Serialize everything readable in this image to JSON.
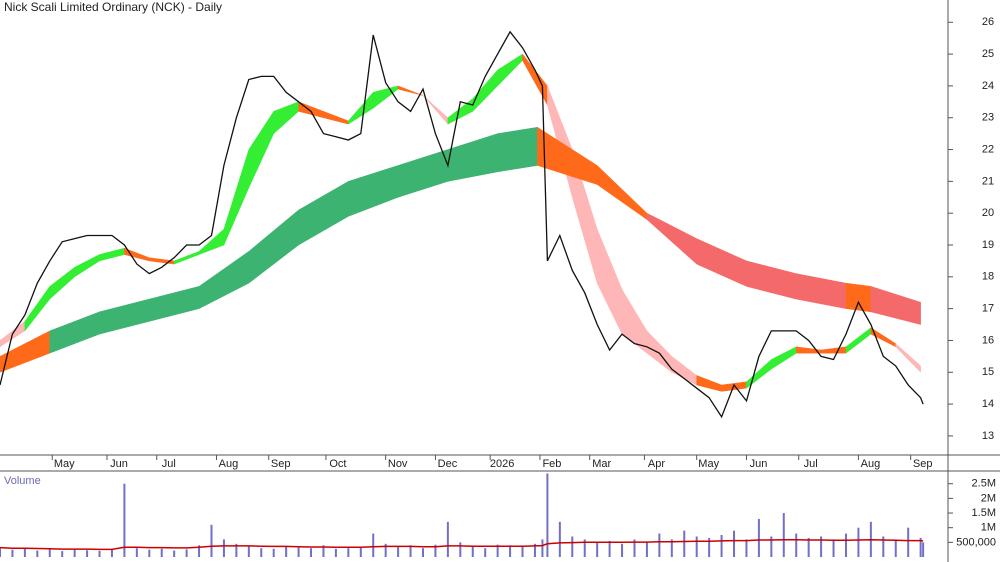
{
  "chart_data": [
    {
      "type": "line",
      "title": "Nick Scali Limited Ordinary (NCK) - Daily",
      "xlim": [
        0,
        381
      ],
      "ylim": [
        12.4,
        26.7
      ],
      "xticks": [
        {
          "value": 21,
          "label": "May"
        },
        {
          "value": 43,
          "label": "Jun"
        },
        {
          "value": 63,
          "label": "Jul"
        },
        {
          "value": 87,
          "label": "Aug"
        },
        {
          "value": 108,
          "label": "Sep"
        },
        {
          "value": 131,
          "label": "Oct"
        },
        {
          "value": 155,
          "label": "Nov"
        },
        {
          "value": 175,
          "label": "Dec"
        },
        {
          "value": 197,
          "label": "2026"
        },
        {
          "value": 217,
          "label": "Feb"
        },
        {
          "value": 237,
          "label": "Mar"
        },
        {
          "value": 259,
          "label": "Apr"
        },
        {
          "value": 280,
          "label": "May"
        },
        {
          "value": 300,
          "label": "Jun"
        },
        {
          "value": 321,
          "label": "Jul"
        },
        {
          "value": 345,
          "label": "Aug"
        },
        {
          "value": 366,
          "label": "Sep"
        }
      ],
      "yticks": [
        13,
        14,
        15,
        16,
        17,
        18,
        19,
        20,
        21,
        22,
        23,
        24,
        25,
        26
      ],
      "x": [
        0,
        5,
        10,
        15,
        20,
        25,
        30,
        35,
        40,
        45,
        50,
        55,
        60,
        65,
        70,
        75,
        80,
        85,
        90,
        95,
        100,
        105,
        110,
        115,
        120,
        125,
        130,
        135,
        140,
        145,
        150,
        155,
        160,
        165,
        170,
        175,
        180,
        185,
        190,
        195,
        200,
        205,
        210,
        215,
        218,
        220,
        225,
        230,
        235,
        240,
        245,
        250,
        255,
        260,
        265,
        270,
        275,
        280,
        285,
        290,
        295,
        300,
        305,
        310,
        315,
        320,
        325,
        330,
        335,
        340,
        345,
        350,
        355,
        360,
        365,
        370,
        371
      ],
      "series": [
        {
          "color": "#111111",
          "values": [
            14.6,
            16.2,
            16.8,
            17.8,
            18.5,
            19.1,
            19.2,
            19.3,
            19.3,
            19.3,
            19.0,
            18.4,
            18.1,
            18.3,
            18.6,
            19.0,
            19.0,
            19.3,
            21.5,
            23.0,
            24.2,
            24.3,
            24.3,
            23.8,
            23.5,
            23.2,
            22.5,
            22.4,
            22.3,
            22.5,
            25.6,
            24.1,
            23.5,
            23.2,
            23.9,
            22.5,
            21.5,
            23.5,
            23.4,
            24.3,
            25.0,
            25.7,
            25.2,
            24.5,
            24.0,
            18.5,
            19.3,
            18.2,
            17.5,
            16.5,
            15.7,
            16.2,
            15.9,
            15.8,
            15.6,
            15.1,
            14.8,
            14.5,
            14.2,
            13.6,
            14.6,
            14.1,
            15.5,
            16.3,
            16.3,
            16.3,
            16.0,
            15.5,
            15.4,
            16.2,
            17.2,
            16.5,
            15.5,
            15.2,
            14.6,
            14.2,
            14.0
          ]
        }
      ],
      "bands": [
        {
          "x": [
            0,
            10,
            20,
            30,
            40,
            50,
            60,
            70,
            80,
            90,
            100,
            110,
            120,
            130,
            140,
            150,
            160,
            170,
            180,
            190,
            200,
            210,
            220,
            230,
            240,
            250,
            260,
            270,
            280,
            290,
            300,
            310,
            320,
            330,
            340,
            350,
            360,
            370
          ],
          "upper": [
            16.0,
            16.6,
            17.7,
            18.3,
            18.7,
            18.9,
            18.6,
            18.5,
            18.8,
            19.5,
            22.0,
            23.2,
            23.5,
            23.2,
            22.9,
            23.8,
            24.0,
            23.7,
            23.0,
            23.6,
            24.5,
            25.0,
            24.0,
            22.0,
            19.5,
            17.6,
            16.3,
            15.5,
            14.9,
            14.6,
            14.7,
            15.4,
            15.8,
            15.7,
            15.8,
            16.4,
            15.9,
            15.2
          ],
          "lower": [
            15.8,
            16.3,
            17.3,
            18.0,
            18.5,
            18.7,
            18.5,
            18.4,
            18.7,
            19.0,
            20.8,
            22.5,
            23.2,
            23.0,
            22.8,
            23.3,
            23.9,
            23.7,
            22.8,
            23.2,
            24.0,
            24.8,
            23.4,
            20.5,
            17.8,
            16.2,
            15.6,
            15.0,
            14.6,
            14.4,
            14.5,
            15.1,
            15.6,
            15.6,
            15.6,
            16.2,
            15.8,
            15.0
          ],
          "colors": [
            "#ffb6b6",
            "#33ee33",
            "#33ee33",
            "#33ee33",
            "#33ee33",
            "#ff6a1a",
            "#ff6a1a",
            "#33ee33",
            "#33ee33",
            "#33ee33",
            "#33ee33",
            "#33ee33",
            "#ff6a1a",
            "#ff6a1a",
            "#33ee33",
            "#33ee33",
            "#ff6a1a",
            "#ffb6b6",
            "#33ee33",
            "#33ee33",
            "#33ee33",
            "#ff6a1a",
            "#ffb6b6",
            "#ffb6b6",
            "#ffb6b6",
            "#ffb6b6",
            "#ffb6b6",
            "#ffb6b6",
            "#ff6a1a",
            "#ff6a1a",
            "#33ee33",
            "#33ee33",
            "#ff6a1a",
            "#ff6a1a",
            "#33ee33",
            "#ff6a1a",
            "#ffb6b6"
          ]
        },
        {
          "x": [
            0,
            20,
            40,
            60,
            80,
            100,
            120,
            140,
            160,
            180,
            200,
            216,
            240,
            260,
            280,
            300,
            320,
            340,
            350,
            370
          ],
          "upper": [
            15.5,
            16.3,
            16.9,
            17.3,
            17.7,
            18.8,
            20.1,
            21.0,
            21.5,
            22.0,
            22.5,
            22.7,
            21.5,
            20.0,
            19.2,
            18.5,
            18.1,
            17.8,
            17.7,
            17.2
          ],
          "lower": [
            15.0,
            15.6,
            16.2,
            16.6,
            17.0,
            17.8,
            19.0,
            19.9,
            20.5,
            21.0,
            21.3,
            21.5,
            20.9,
            19.8,
            18.4,
            17.7,
            17.3,
            17.0,
            16.9,
            16.5
          ],
          "colors": [
            "#ff6a1a",
            "#3cb371",
            "#3cb371",
            "#3cb371",
            "#3cb371",
            "#3cb371",
            "#3cb371",
            "#3cb371",
            "#3cb371",
            "#3cb371",
            "#3cb371",
            "#ff6a1a",
            "#ff6a1a",
            "#f46a6a",
            "#f46a6a",
            "#f46a6a",
            "#f46a6a",
            "#ff6a1a",
            "#f46a6a"
          ]
        }
      ]
    },
    {
      "type": "bar",
      "title": "Volume",
      "ylim": [
        0,
        2900000
      ],
      "yticks": [
        {
          "value": 2500000,
          "label": "2.5M"
        },
        {
          "value": 2000000,
          "label": "2M"
        },
        {
          "value": 1500000,
          "label": "1.5M"
        },
        {
          "value": 1000000,
          "label": "1M"
        },
        {
          "value": 500000,
          "label": "500,000"
        }
      ],
      "x": [
        0,
        5,
        10,
        15,
        20,
        25,
        30,
        35,
        40,
        45,
        50,
        55,
        60,
        65,
        70,
        75,
        80,
        85,
        90,
        95,
        100,
        105,
        110,
        115,
        120,
        125,
        130,
        135,
        140,
        145,
        150,
        155,
        160,
        165,
        170,
        175,
        180,
        185,
        190,
        195,
        200,
        205,
        210,
        215,
        218,
        220,
        225,
        230,
        235,
        240,
        245,
        250,
        255,
        260,
        265,
        270,
        275,
        280,
        285,
        290,
        295,
        300,
        305,
        310,
        315,
        320,
        325,
        330,
        335,
        340,
        345,
        350,
        355,
        360,
        365,
        370,
        371
      ],
      "series": [
        {
          "color": "#7070c8",
          "values": [
            300000,
            250000,
            280000,
            220000,
            260000,
            200000,
            250000,
            230000,
            210000,
            240000,
            2500000,
            300000,
            250000,
            280000,
            220000,
            260000,
            400000,
            1100000,
            600000,
            450000,
            380000,
            300000,
            280000,
            350000,
            320000,
            300000,
            400000,
            280000,
            300000,
            350000,
            800000,
            450000,
            350000,
            400000,
            300000,
            420000,
            1200000,
            500000,
            350000,
            300000,
            420000,
            400000,
            380000,
            450000,
            600000,
            2850000,
            1200000,
            700000,
            600000,
            500000,
            550000,
            450000,
            600000,
            500000,
            800000,
            600000,
            900000,
            700000,
            650000,
            750000,
            900000,
            600000,
            1300000,
            700000,
            1500000,
            800000,
            650000,
            700000,
            600000,
            800000,
            1000000,
            1200000,
            700000,
            600000,
            1000000,
            650000,
            500000
          ]
        },
        {
          "color": "#cc0000",
          "values": [
            320000,
            300000,
            300000,
            290000,
            280000,
            270000,
            270000,
            270000,
            260000,
            260000,
            330000,
            330000,
            320000,
            320000,
            310000,
            310000,
            330000,
            370000,
            380000,
            380000,
            380000,
            370000,
            360000,
            360000,
            350000,
            340000,
            340000,
            330000,
            330000,
            330000,
            350000,
            360000,
            360000,
            360000,
            350000,
            350000,
            380000,
            380000,
            370000,
            370000,
            370000,
            370000,
            370000,
            380000,
            390000,
            450000,
            480000,
            490000,
            500000,
            500000,
            500000,
            500000,
            510000,
            510000,
            520000,
            520000,
            530000,
            540000,
            540000,
            550000,
            560000,
            560000,
            580000,
            580000,
            590000,
            590000,
            580000,
            580000,
            570000,
            570000,
            580000,
            590000,
            580000,
            570000,
            560000,
            560000,
            550000
          ]
        }
      ]
    }
  ]
}
